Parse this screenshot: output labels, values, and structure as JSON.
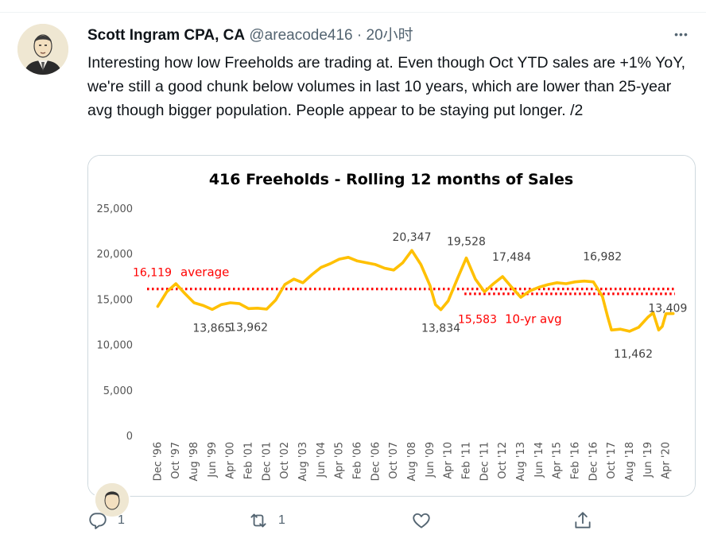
{
  "tweet": {
    "author_name": "Scott Ingram CPA, CA",
    "handle": "@areacode416",
    "separator": "·",
    "time": "20小时",
    "more_glyph": "•••",
    "text": "Interesting how low Freeholds are trading at. Even though Oct YTD sales are +1% YoY, we're still a good chunk below volumes in last 10 years, which are lower than 25-year avg though bigger population. People appear to be staying put longer. /2"
  },
  "actions": {
    "reply_count": "1",
    "retweet_count": "1",
    "like_count": "",
    "icons": [
      "reply-icon",
      "retweet-icon",
      "like-icon",
      "share-icon"
    ]
  },
  "chart_data": {
    "type": "line",
    "title": "416 Freeholds - Rolling 12 months of Sales",
    "ylim": [
      0,
      25000
    ],
    "yticks": [
      "25,000",
      "20,000",
      "15,000",
      "10,000",
      "5,000",
      "0"
    ],
    "xticks": [
      "Dec '96",
      "Oct '97",
      "Aug '98",
      "Jun '99",
      "Apr '00",
      "Feb '01",
      "Dec '01",
      "Oct '02",
      "Aug '03",
      "Jun '04",
      "Apr '05",
      "Feb '06",
      "Dec '06",
      "Oct '07",
      "Aug '08",
      "Jun '09",
      "Apr '10",
      "Feb '11",
      "Dec '11",
      "Oct '12",
      "Aug '13",
      "Jun '14",
      "Apr '15",
      "Feb '16",
      "Dec '16",
      "Oct '17",
      "Aug '18",
      "Jun '19",
      "Apr '20"
    ],
    "series": [
      {
        "name": "",
        "color": "#FFC000",
        "x": [
          0,
          0.5,
          1,
          1.5,
          2,
          2.5,
          3,
          3.5,
          4,
          4.5,
          5,
          5.5,
          6,
          6.5,
          7,
          7.5,
          8,
          8.5,
          9,
          9.5,
          10,
          10.5,
          11,
          11.5,
          12,
          12.5,
          13,
          13.5,
          14,
          14.5,
          15,
          15.3,
          15.6,
          16,
          16.5,
          17,
          17.5,
          18,
          18.5,
          19,
          19.5,
          20,
          20.5,
          21,
          21.5,
          22,
          22.5,
          23,
          23.5,
          24,
          24.5,
          24.8,
          25,
          25.5,
          26,
          26.5,
          27,
          27.3,
          27.6,
          27.8,
          28,
          28.4
        ],
        "y": [
          14200,
          15800,
          16700,
          15600,
          14600,
          14300,
          13865,
          14400,
          14600,
          14500,
          13962,
          14000,
          13900,
          14900,
          16600,
          17200,
          16800,
          17700,
          18500,
          18900,
          19400,
          19600,
          19200,
          19000,
          18800,
          18400,
          18200,
          19000,
          20347,
          18800,
          16500,
          14400,
          13834,
          14800,
          17200,
          19528,
          17200,
          15800,
          16700,
          17484,
          16300,
          15200,
          15900,
          16300,
          16600,
          16800,
          16700,
          16900,
          16982,
          16900,
          15300,
          13000,
          11600,
          11700,
          11462,
          11900,
          13000,
          13500,
          11600,
          12000,
          13400,
          13409
        ]
      }
    ],
    "reference_lines": [
      {
        "label": "average",
        "value": 16119,
        "value_label": "16,119",
        "color": "#FF0000"
      },
      {
        "label": "10-yr avg",
        "value": 15583,
        "value_label": "15,583",
        "color": "#FF0000"
      }
    ],
    "annotations": [
      "20,347",
      "19,528",
      "17,484",
      "16,982",
      "13,865",
      "13,962",
      "13,834",
      "11,462",
      "13,409"
    ]
  }
}
